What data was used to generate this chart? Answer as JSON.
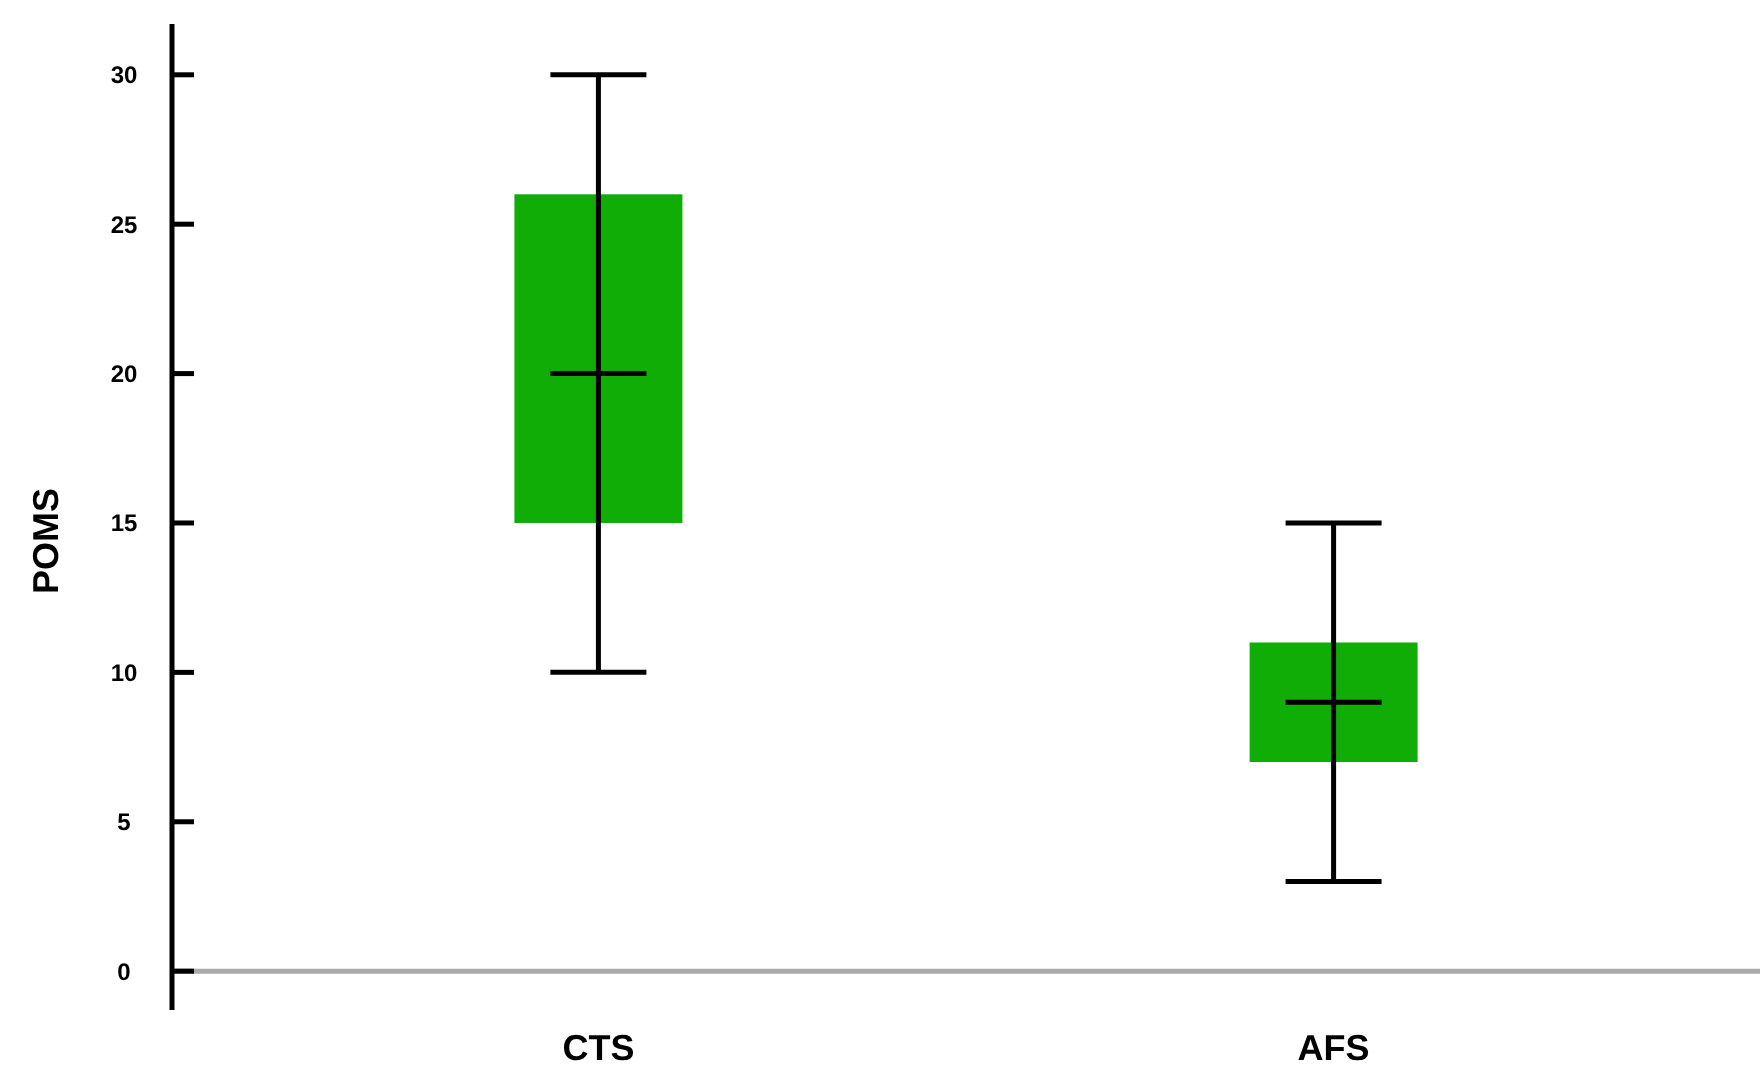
{
  "chart_data": {
    "type": "box",
    "ylabel": "POMS",
    "categories": [
      "CTS",
      "AFS"
    ],
    "color": "#11ad07",
    "boxes": [
      {
        "low": 10,
        "q1": 15,
        "median": 20,
        "q3": 26,
        "high": 30
      },
      {
        "low": 3,
        "q1": 7,
        "median": 9,
        "q3": 11,
        "high": 15
      }
    ],
    "ylim": [
      -1.3,
      31.7
    ],
    "yticks": [
      0,
      5,
      10,
      15,
      20,
      25,
      30
    ],
    "grid": false
  }
}
